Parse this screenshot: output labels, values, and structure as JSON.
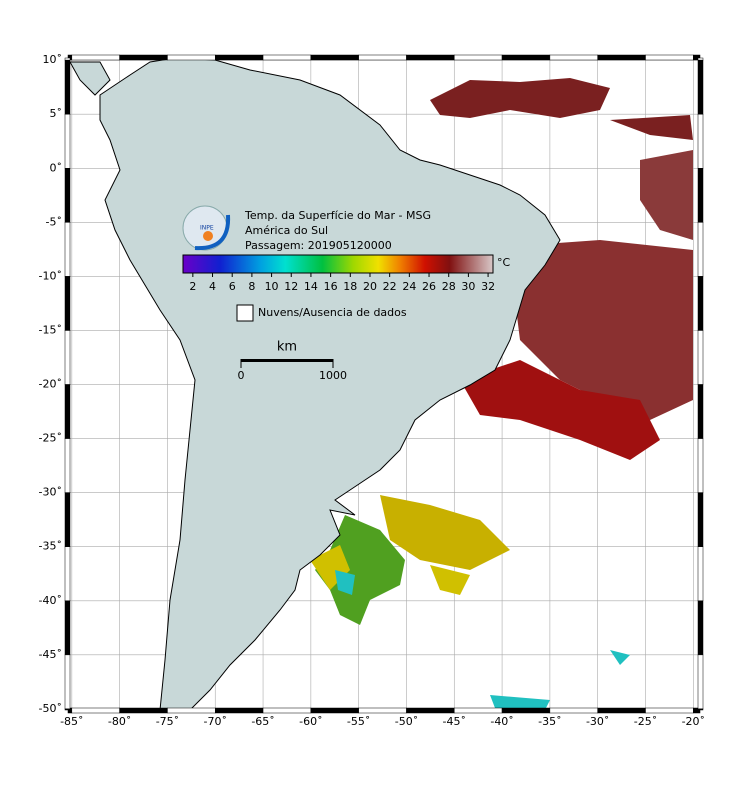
{
  "map": {
    "title_lines": [
      "Temp. da Superfície do Mar - MSG",
      "América do Sul",
      "Passagem: 201905120000"
    ],
    "logo_text": "INPE",
    "colorbar": {
      "unit": "°C",
      "lim": [
        1,
        32.5
      ],
      "ticks": [
        2,
        4,
        6,
        8,
        10,
        12,
        14,
        16,
        18,
        20,
        22,
        24,
        26,
        28,
        30,
        32
      ]
    },
    "legend": "Nuvens/Ausencia de dados",
    "scale": {
      "unit": "km",
      "lim": [
        0,
        1000
      ],
      "ticks": [
        0,
        1000
      ]
    },
    "lonlim": [
      -85.4,
      -19.3
    ],
    "latlim": [
      -50.1,
      10.2
    ],
    "lon_ticks": [
      {
        "value": -85,
        "label": "-85˚"
      },
      {
        "value": -80,
        "label": "-80˚"
      },
      {
        "value": -75,
        "label": "-75˚"
      },
      {
        "value": -70,
        "label": "-70˚"
      },
      {
        "value": -65,
        "label": "-65˚"
      },
      {
        "value": -60,
        "label": "-60˚"
      },
      {
        "value": -55,
        "label": "-55˚"
      },
      {
        "value": -50,
        "label": "-50˚"
      },
      {
        "value": -45,
        "label": "-45˚"
      },
      {
        "value": -40,
        "label": "-40˚"
      },
      {
        "value": -35,
        "label": "-35˚"
      },
      {
        "value": -30,
        "label": "-30˚"
      },
      {
        "value": -25,
        "label": "-25˚"
      },
      {
        "value": -20,
        "label": "-20˚"
      }
    ],
    "lat_ticks": [
      {
        "value": 10,
        "label": "10˚"
      },
      {
        "value": 5,
        "label": "5˚"
      },
      {
        "value": 0,
        "label": "0˚"
      },
      {
        "value": -5,
        "label": "-5˚"
      },
      {
        "value": -10,
        "label": "-10˚"
      },
      {
        "value": -15,
        "label": "-15˚"
      },
      {
        "value": -20,
        "label": "-20˚"
      },
      {
        "value": -25,
        "label": "-25˚"
      },
      {
        "value": -30,
        "label": "-30˚"
      },
      {
        "value": -35,
        "label": "-35˚"
      },
      {
        "value": -40,
        "label": "-40˚"
      },
      {
        "value": -45,
        "label": "-45˚"
      },
      {
        "value": -50,
        "label": "-50˚"
      }
    ]
  }
}
